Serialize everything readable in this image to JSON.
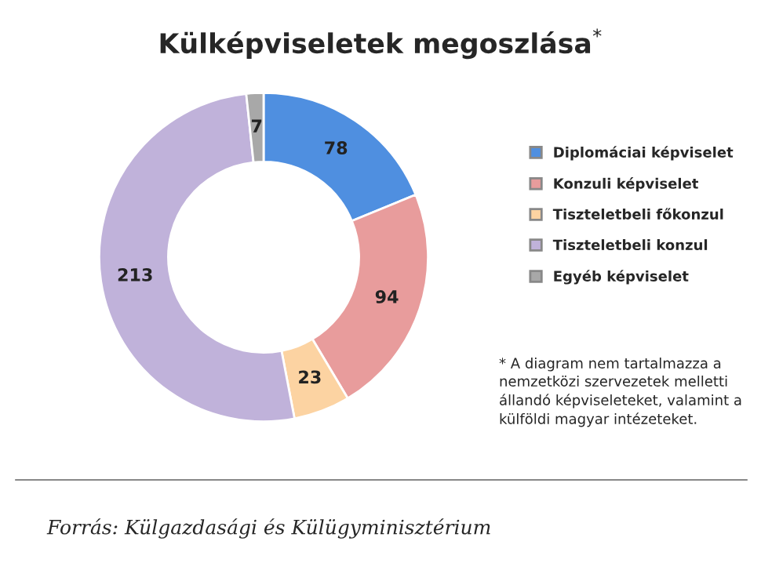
{
  "chart_data": {
    "type": "donut",
    "title": "Külképviseletek megoszlása$^{*}$",
    "categories": [
      "Diplomáciai képviselet",
      "Konzuli képviselet",
      "Tiszteletbeli főkonzul",
      "Tiszteletbeli konzul",
      "Egyéb képviselet"
    ],
    "values": [
      78,
      94,
      23,
      213,
      7
    ],
    "colors": [
      "#4f8fe0",
      "#e89c9c",
      "#fcd3a2",
      "#c0b2da",
      "#a8a8a8"
    ],
    "data_labels": true,
    "legend": "right",
    "annotations": [
      "* A diagram nem tartalmazza a nemzetközi szervezetek melletti állandó képviseleteket, valamint a külföldi magyar intézeteket.",
      "Forrás: Külgazdasági és Külügyminisztérium"
    ]
  }
}
